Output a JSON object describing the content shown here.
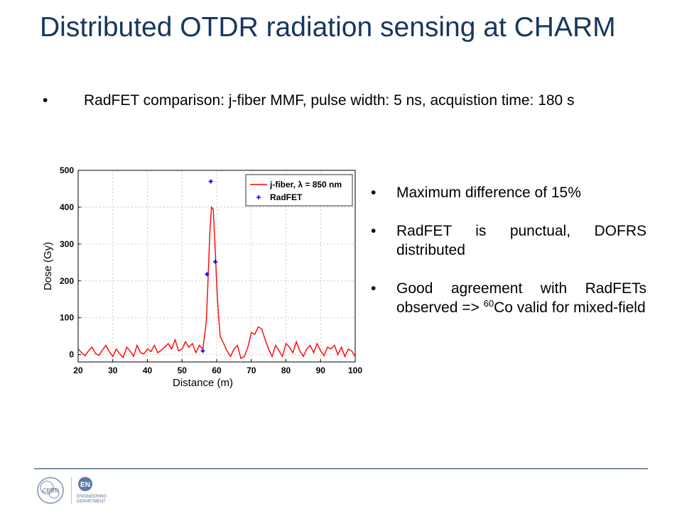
{
  "slide": {
    "title": "Distributed OTDR radiation sensing at CHARM",
    "top_bullet": "RadFET comparison: j-fiber MMF, pulse width: 5 ns, acquistion time: 180 s",
    "right_bullets": [
      {
        "text": "Maximum difference of 15%"
      },
      {
        "text": "RadFET is punctual, DOFRS distributed"
      },
      {
        "pre": "Good agreement with RadFETs observed => ",
        "sup": "60",
        "post": "Co valid for mixed-field"
      }
    ],
    "bullet_char": "•"
  },
  "logos": {
    "cern_text": "CERN",
    "en_mark": "EN",
    "en_text_1": "ENGINEERING",
    "en_text_2": "DEPARTMENT"
  },
  "chart_data": {
    "type": "line",
    "xlabel": "Distance (m)",
    "ylabel": "Dose (Gy)",
    "xlim": [
      20,
      100
    ],
    "ylim": [
      -20,
      500
    ],
    "xticks": [
      20,
      30,
      40,
      50,
      60,
      70,
      80,
      90,
      100
    ],
    "yticks": [
      0,
      100,
      200,
      300,
      400,
      500
    ],
    "grid": true,
    "legend_position": "top-right",
    "series": [
      {
        "name": "j-fiber, λ = 850 nm",
        "kind": "line",
        "color": "#ff0000",
        "x": [
          20,
          21,
          22,
          23,
          24,
          25,
          26,
          27,
          28,
          29,
          30,
          31,
          32,
          33,
          34,
          35,
          36,
          37,
          38,
          39,
          40,
          41,
          42,
          43,
          44,
          45,
          46,
          47,
          48,
          49,
          50,
          51,
          52,
          53,
          54,
          55,
          56,
          56.5,
          57,
          57.5,
          58,
          58.5,
          59,
          59.5,
          60,
          60.5,
          61,
          62,
          63,
          64,
          65,
          66,
          67,
          68,
          69,
          70,
          71,
          72,
          73,
          74,
          75,
          76,
          77,
          78,
          79,
          80,
          81,
          82,
          83,
          84,
          85,
          86,
          87,
          88,
          89,
          90,
          91,
          92,
          93,
          94,
          95,
          96,
          97,
          98,
          99,
          100
        ],
        "y": [
          15,
          5,
          -3,
          10,
          20,
          3,
          -2,
          12,
          25,
          8,
          -5,
          15,
          2,
          -8,
          20,
          10,
          -5,
          25,
          5,
          2,
          15,
          8,
          25,
          5,
          12,
          20,
          30,
          15,
          40,
          10,
          15,
          35,
          20,
          30,
          5,
          25,
          15,
          50,
          90,
          200,
          330,
          400,
          395,
          300,
          190,
          110,
          50,
          30,
          10,
          -5,
          15,
          25,
          -10,
          -5,
          20,
          60,
          55,
          75,
          70,
          40,
          15,
          -5,
          25,
          10,
          -5,
          30,
          20,
          5,
          35,
          10,
          -5,
          15,
          25,
          5,
          30,
          10,
          -3,
          20,
          15,
          25,
          0,
          20,
          -5,
          15,
          10,
          -5
        ]
      },
      {
        "name": "RadFET",
        "kind": "scatter",
        "color": "#0000ff",
        "x": [
          56,
          57.2,
          58.3,
          59.6
        ],
        "y": [
          10,
          218,
          470,
          252
        ]
      }
    ]
  }
}
